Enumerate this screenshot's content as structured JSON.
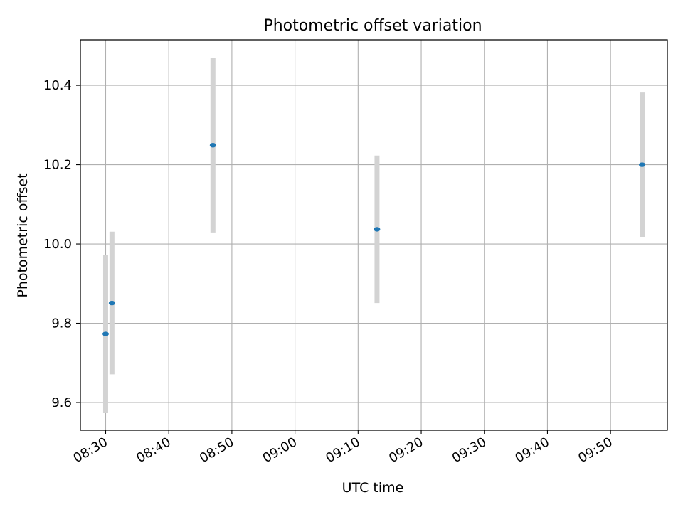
{
  "chart_data": {
    "type": "scatter",
    "title": "Photometric offset variation",
    "xlabel": "UTC time",
    "ylabel": "Photometric offset",
    "x_ticks": [
      "08:30",
      "08:40",
      "08:50",
      "09:00",
      "09:10",
      "09:20",
      "09:30",
      "09:40",
      "09:50"
    ],
    "y_ticks": [
      "9.6",
      "9.8",
      "10.0",
      "10.2",
      "10.4"
    ],
    "xlim": [
      "08:26",
      "09:59"
    ],
    "ylim": [
      9.53,
      10.515
    ],
    "grid": true,
    "legend": "none",
    "colors": {
      "marker": "#1f77b4",
      "errorbar": "#d3d3d3",
      "grid": "#b0b0b0"
    },
    "points": [
      {
        "x": "08:30",
        "y": 9.773,
        "yerr": 0.2
      },
      {
        "x": "08:31",
        "y": 9.851,
        "yerr": 0.18
      },
      {
        "x": "08:47",
        "y": 10.249,
        "yerr": 0.22
      },
      {
        "x": "09:13",
        "y": 10.037,
        "yerr": 0.186
      },
      {
        "x": "09:55",
        "y": 10.2,
        "yerr": 0.182
      }
    ]
  }
}
